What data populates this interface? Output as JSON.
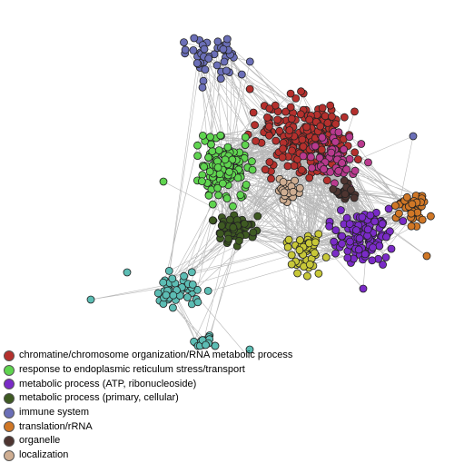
{
  "clusters": [
    {
      "label": "chromatine/chromosome organization/RNA metabolic process",
      "color": "#b5302d"
    },
    {
      "label": "response to endoplasmic reticulum stress/transport",
      "color": "#5fd44f"
    },
    {
      "label": "metabolic process (ATP, ribonucleoside)",
      "color": "#7a2bc7"
    },
    {
      "label": "metabolic process (primary, cellular)",
      "color": "#3e5a22"
    },
    {
      "label": "immune system",
      "color": "#6b6fb8"
    },
    {
      "label": "translation/rRNA",
      "color": "#d07726"
    },
    {
      "label": "organelle",
      "color": "#4e3531"
    },
    {
      "label": "localization",
      "color": "#cfae92"
    }
  ],
  "extra_colors": {
    "magenta": "#b93a8e",
    "yellow": "#c8c838",
    "teal": "#5cbdb4",
    "edge": "#9a9a9a"
  }
}
